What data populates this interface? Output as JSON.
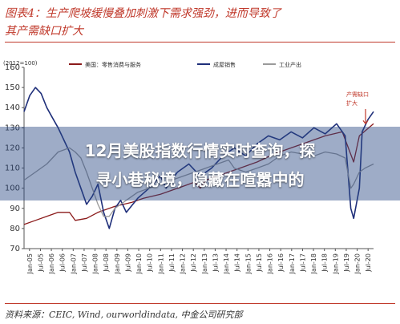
{
  "figure": {
    "title_line1": "图表4：生产爬坡缓慢叠加刺激下需求强劲，进而导致了",
    "title_line2": "其产需缺口扩大",
    "source": "资料来源：CEIC, Wind, ourworldindata, 中金公司研究部"
  },
  "overlay": {
    "line1": "12月美股指数行情实时查询，探",
    "line2": "寻小巷秘境，隐藏在喧嚣中的"
  },
  "chart_data": {
    "type": "line",
    "unit_label": "(2012=100)",
    "ylim": [
      70,
      160
    ],
    "yticks": [
      70,
      80,
      90,
      100,
      110,
      120,
      130,
      140,
      150,
      160
    ],
    "xlabels": [
      "Jan-05",
      "Jul-05",
      "Jan-06",
      "Jul-06",
      "Jan-07",
      "Jul-07",
      "Jan-08",
      "Jul-08",
      "Jan-09",
      "Jul-09",
      "Jan-10",
      "Jul-10",
      "Jan-11",
      "Jul-11",
      "Jan-12",
      "Jul-12",
      "Jan-13",
      "Jul-13",
      "Jan-14",
      "Jul-14",
      "Jan-15",
      "Jul-15",
      "Jan-16",
      "Jul-16",
      "Jan-17",
      "Jul-17",
      "Jan-18",
      "Jul-18",
      "Jan-19",
      "Jul-19",
      "Jan-20",
      "Jul-20"
    ],
    "annotation": "产需缺口扩大",
    "colors": {
      "consumption": "#8b1a1a",
      "durables": "#1f2f7a",
      "industrial": "#9a9a9a",
      "annotation": "#c0392b"
    },
    "series": [
      {
        "name": "美国：零售消费与服务",
        "key": "consumption",
        "points": [
          [
            0,
            82
          ],
          [
            4,
            84
          ],
          [
            8,
            86
          ],
          [
            12,
            88
          ],
          [
            16,
            88
          ],
          [
            18,
            84
          ],
          [
            22,
            85
          ],
          [
            26,
            88
          ],
          [
            32,
            91
          ],
          [
            38,
            93
          ],
          [
            42,
            95
          ],
          [
            48,
            97
          ],
          [
            52,
            99
          ],
          [
            56,
            101
          ],
          [
            60,
            103
          ],
          [
            62,
            100
          ],
          [
            64,
            104
          ],
          [
            70,
            107
          ],
          [
            76,
            110
          ],
          [
            82,
            113
          ],
          [
            88,
            117
          ],
          [
            94,
            120
          ],
          [
            100,
            123
          ],
          [
            106,
            126
          ],
          [
            112,
            128
          ],
          [
            116,
            113
          ],
          [
            118,
            126
          ],
          [
            123,
            132
          ]
        ]
      },
      {
        "name": "成屋销售",
        "key": "durables",
        "points": [
          [
            0,
            138
          ],
          [
            2,
            146
          ],
          [
            4,
            150
          ],
          [
            6,
            147
          ],
          [
            8,
            140
          ],
          [
            10,
            135
          ],
          [
            12,
            130
          ],
          [
            14,
            124
          ],
          [
            16,
            118
          ],
          [
            18,
            108
          ],
          [
            20,
            100
          ],
          [
            22,
            92
          ],
          [
            24,
            96
          ],
          [
            26,
            102
          ],
          [
            28,
            88
          ],
          [
            30,
            80
          ],
          [
            32,
            90
          ],
          [
            34,
            94
          ],
          [
            36,
            88
          ],
          [
            40,
            95
          ],
          [
            44,
            100
          ],
          [
            48,
            106
          ],
          [
            50,
            100
          ],
          [
            54,
            108
          ],
          [
            58,
            112
          ],
          [
            62,
            106
          ],
          [
            66,
            110
          ],
          [
            70,
            116
          ],
          [
            74,
            120
          ],
          [
            78,
            116
          ],
          [
            82,
            122
          ],
          [
            86,
            126
          ],
          [
            90,
            124
          ],
          [
            94,
            128
          ],
          [
            98,
            125
          ],
          [
            102,
            130
          ],
          [
            106,
            127
          ],
          [
            110,
            132
          ],
          [
            113,
            126
          ],
          [
            115,
            90
          ],
          [
            116,
            85
          ],
          [
            118,
            100
          ],
          [
            119,
            128
          ],
          [
            121,
            134
          ],
          [
            123,
            138
          ]
        ]
      },
      {
        "name": "工业产出",
        "key": "industrial",
        "points": [
          [
            0,
            104
          ],
          [
            4,
            108
          ],
          [
            8,
            112
          ],
          [
            12,
            118
          ],
          [
            16,
            120
          ],
          [
            18,
            118
          ],
          [
            20,
            115
          ],
          [
            22,
            108
          ],
          [
            24,
            100
          ],
          [
            26,
            92
          ],
          [
            28,
            86
          ],
          [
            30,
            86
          ],
          [
            32,
            90
          ],
          [
            36,
            94
          ],
          [
            40,
            98
          ],
          [
            44,
            100
          ],
          [
            48,
            102
          ],
          [
            52,
            104
          ],
          [
            56,
            106
          ],
          [
            60,
            108
          ],
          [
            64,
            110
          ],
          [
            68,
            112
          ],
          [
            72,
            114
          ],
          [
            74,
            110
          ],
          [
            78,
            108
          ],
          [
            82,
            110
          ],
          [
            86,
            112
          ],
          [
            90,
            116
          ],
          [
            94,
            118
          ],
          [
            98,
            117
          ],
          [
            102,
            116
          ],
          [
            106,
            118
          ],
          [
            110,
            117
          ],
          [
            113,
            115
          ],
          [
            115,
            100
          ],
          [
            116,
            102
          ],
          [
            118,
            108
          ],
          [
            120,
            110
          ],
          [
            123,
            112
          ]
        ]
      }
    ]
  }
}
